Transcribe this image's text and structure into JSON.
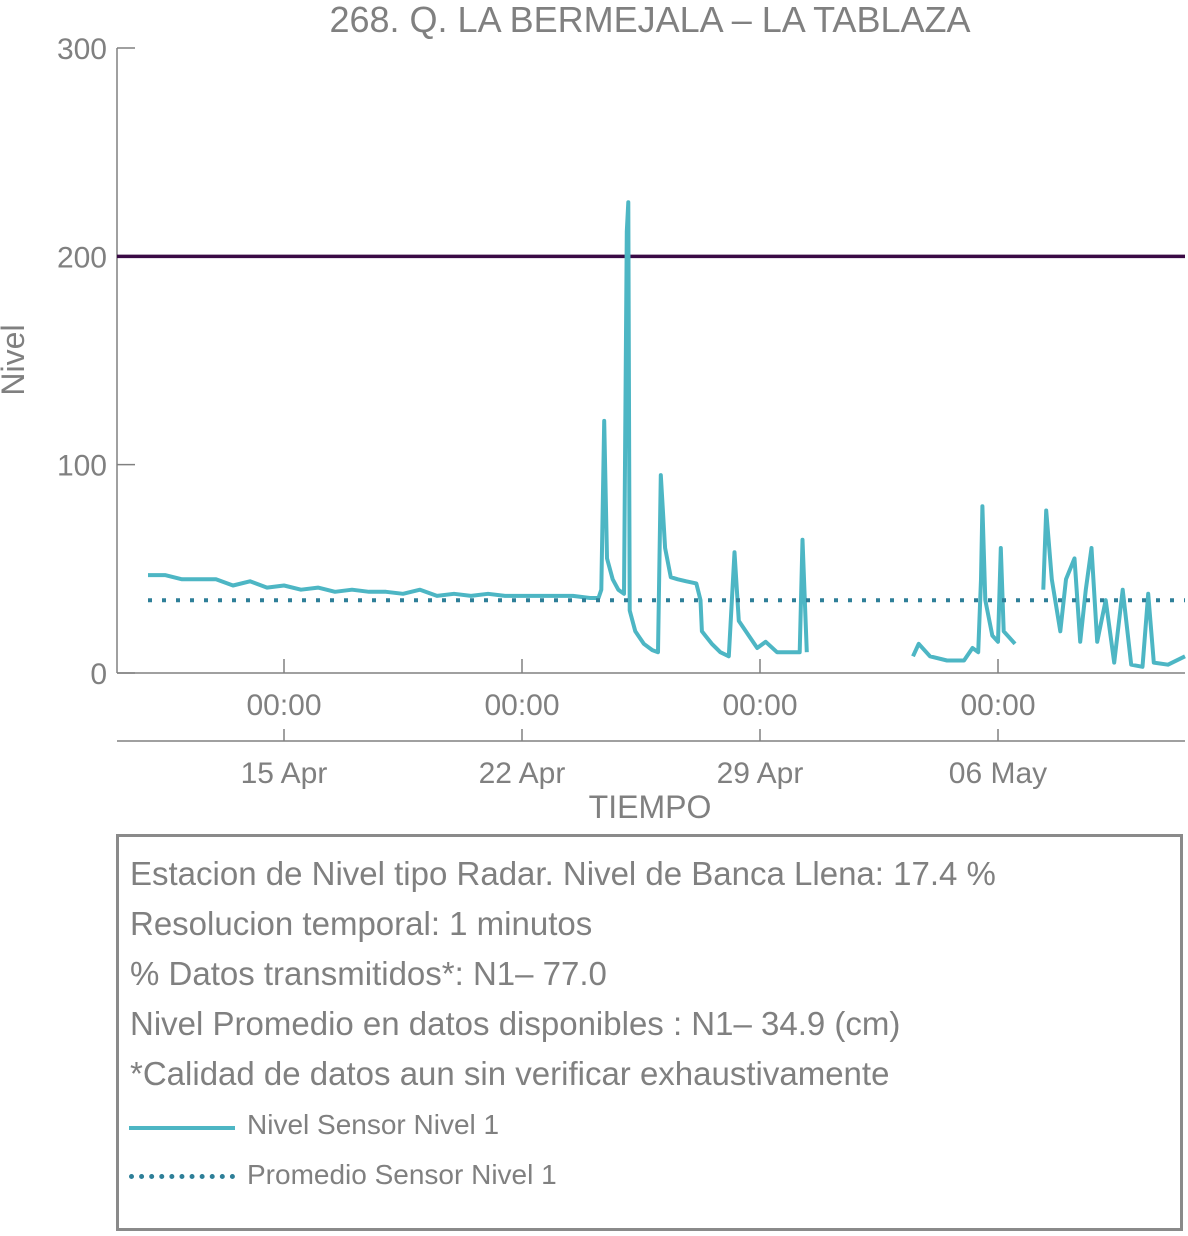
{
  "chart_data": {
    "type": "line",
    "title": "268. Q. LA BERMEJALA – LA TABLAZA",
    "xlabel": "TIEMPO",
    "ylabel": "Nivel",
    "ylim": [
      0,
      300
    ],
    "yticks": [
      "0",
      "100",
      "200",
      "300"
    ],
    "xlim": [
      "2021-04-11 00:00",
      "2021-05-11 12:00"
    ],
    "xticks": [
      {
        "time": "2021-04-15 00:00",
        "top": "00:00",
        "bottom": "15 Apr"
      },
      {
        "time": "2021-04-22 00:00",
        "top": "00:00",
        "bottom": "22 Apr"
      },
      {
        "time": "2021-04-29 00:00",
        "top": "00:00",
        "bottom": "29 Apr"
      },
      {
        "time": "2021-05-06 00:00",
        "top": "00:00",
        "bottom": "06 May"
      }
    ],
    "grid": false,
    "colors": {
      "level": "#4db6c4",
      "mean": "#2e7f98",
      "bank": "#3a0a45",
      "axis": "#808080"
    },
    "reference_line": {
      "name": "Nivel de Banca Llena",
      "y": 200
    },
    "series": [
      {
        "name": "Nivel Sensor Nivel 1",
        "style": "solid",
        "points": [
          [
            "2021-04-11 00:00",
            47
          ],
          [
            "2021-04-11 12:00",
            47
          ],
          [
            "2021-04-12 00:00",
            45
          ],
          [
            "2021-04-12 12:00",
            45
          ],
          [
            "2021-04-13 00:00",
            45
          ],
          [
            "2021-04-13 12:00",
            42
          ],
          [
            "2021-04-14 00:00",
            44
          ],
          [
            "2021-04-14 12:00",
            41
          ],
          [
            "2021-04-15 00:00",
            42
          ],
          [
            "2021-04-15 12:00",
            40
          ],
          [
            "2021-04-16 00:00",
            41
          ],
          [
            "2021-04-16 12:00",
            39
          ],
          [
            "2021-04-17 00:00",
            40
          ],
          [
            "2021-04-17 12:00",
            39
          ],
          [
            "2021-04-18 00:00",
            39
          ],
          [
            "2021-04-18 12:00",
            38
          ],
          [
            "2021-04-19 00:00",
            40
          ],
          [
            "2021-04-19 12:00",
            37
          ],
          [
            "2021-04-20 00:00",
            38
          ],
          [
            "2021-04-20 12:00",
            37
          ],
          [
            "2021-04-21 00:00",
            38
          ],
          [
            "2021-04-21 12:00",
            37
          ],
          [
            "2021-04-22 00:00",
            37
          ],
          [
            "2021-04-22 12:00",
            37
          ],
          [
            "2021-04-23 00:00",
            37
          ],
          [
            "2021-04-23 12:00",
            37
          ],
          [
            "2021-04-24 00:00",
            36
          ],
          [
            "2021-04-24 06:00",
            36
          ],
          [
            "2021-04-24 08:00",
            40
          ],
          [
            "2021-04-24 10:00",
            121
          ],
          [
            "2021-04-24 12:00",
            55
          ],
          [
            "2021-04-24 16:00",
            45
          ],
          [
            "2021-04-24 20:00",
            40
          ],
          [
            "2021-04-25 00:00",
            38
          ],
          [
            "2021-04-25 02:00",
            212
          ],
          [
            "2021-04-25 03:00",
            226
          ],
          [
            "2021-04-25 04:00",
            30
          ],
          [
            "2021-04-25 08:00",
            20
          ],
          [
            "2021-04-25 14:00",
            14
          ],
          [
            "2021-04-25 20:00",
            11
          ],
          [
            "2021-04-26 00:00",
            10
          ],
          [
            "2021-04-26 02:00",
            95
          ],
          [
            "2021-04-26 05:00",
            60
          ],
          [
            "2021-04-26 09:00",
            46
          ],
          [
            "2021-04-26 14:00",
            45
          ],
          [
            "2021-04-26 20:00",
            44
          ],
          [
            "2021-04-27 03:00",
            43
          ],
          [
            "2021-04-27 06:00",
            35
          ],
          [
            "2021-04-27 07:00",
            20
          ],
          [
            "2021-04-27 14:00",
            14
          ],
          [
            "2021-04-27 20:00",
            10
          ],
          [
            "2021-04-28 02:00",
            8
          ],
          [
            "2021-04-28 06:00",
            58
          ],
          [
            "2021-04-28 09:00",
            25
          ],
          [
            "2021-04-28 16:00",
            18
          ],
          [
            "2021-04-28 22:00",
            12
          ],
          [
            "2021-04-29 04:00",
            15
          ],
          [
            "2021-04-29 12:00",
            10
          ],
          [
            "2021-04-29 20:00",
            10
          ],
          [
            "2021-04-30 04:00",
            10
          ],
          [
            "2021-04-30 06:00",
            64
          ],
          [
            "2021-04-30 09:00",
            10
          ],
          null,
          [
            "2021-05-03 12:00",
            8
          ],
          [
            "2021-05-03 16:00",
            14
          ],
          [
            "2021-05-04 00:00",
            8
          ],
          [
            "2021-05-04 12:00",
            6
          ],
          [
            "2021-05-05 00:00",
            6
          ],
          [
            "2021-05-05 06:00",
            12
          ],
          [
            "2021-05-05 10:00",
            10
          ],
          [
            "2021-05-05 12:00",
            45
          ],
          [
            "2021-05-05 13:00",
            80
          ],
          [
            "2021-05-05 15:00",
            35
          ],
          [
            "2021-05-05 20:00",
            18
          ],
          [
            "2021-05-06 00:00",
            15
          ],
          [
            "2021-05-06 02:00",
            60
          ],
          [
            "2021-05-06 04:00",
            20
          ],
          [
            "2021-05-06 12:00",
            14
          ],
          null,
          [
            "2021-05-07 08:00",
            40
          ],
          [
            "2021-05-07 10:00",
            78
          ],
          [
            "2021-05-07 14:00",
            45
          ],
          [
            "2021-05-07 20:00",
            20
          ],
          [
            "2021-05-08 00:00",
            45
          ],
          [
            "2021-05-08 06:00",
            55
          ],
          [
            "2021-05-08 10:00",
            15
          ],
          [
            "2021-05-08 14:00",
            40
          ],
          [
            "2021-05-08 18:00",
            60
          ],
          [
            "2021-05-08 22:00",
            15
          ],
          [
            "2021-05-09 04:00",
            35
          ],
          [
            "2021-05-09 10:00",
            5
          ],
          [
            "2021-05-09 16:00",
            40
          ],
          [
            "2021-05-09 22:00",
            4
          ],
          [
            "2021-05-10 06:00",
            3
          ],
          [
            "2021-05-10 10:00",
            38
          ],
          [
            "2021-05-10 14:00",
            5
          ],
          [
            "2021-05-11 00:00",
            4
          ],
          [
            "2021-05-11 12:00",
            8
          ]
        ]
      },
      {
        "name": "Promedio Sensor Nivel 1",
        "style": "dotted",
        "points": [
          [
            "2021-04-11 00:00",
            34.9
          ],
          [
            "2021-05-11 12:00",
            34.9
          ]
        ]
      }
    ]
  },
  "info": {
    "line1": "Estacion de Nivel tipo Radar. Nivel de Banca Llena: 17.4 %",
    "line2": "Resolucion temporal: 1 minutos",
    "line3": "% Datos transmitidos*: N1– 77.0",
    "line4": "Nivel Promedio en datos disponibles : N1– 34.9 (cm)",
    "line5": "*Calidad de datos aun sin verificar exhaustivamente"
  },
  "legend": {
    "level_label": "Nivel Sensor Nivel 1",
    "mean_label": "Promedio Sensor Nivel 1"
  }
}
